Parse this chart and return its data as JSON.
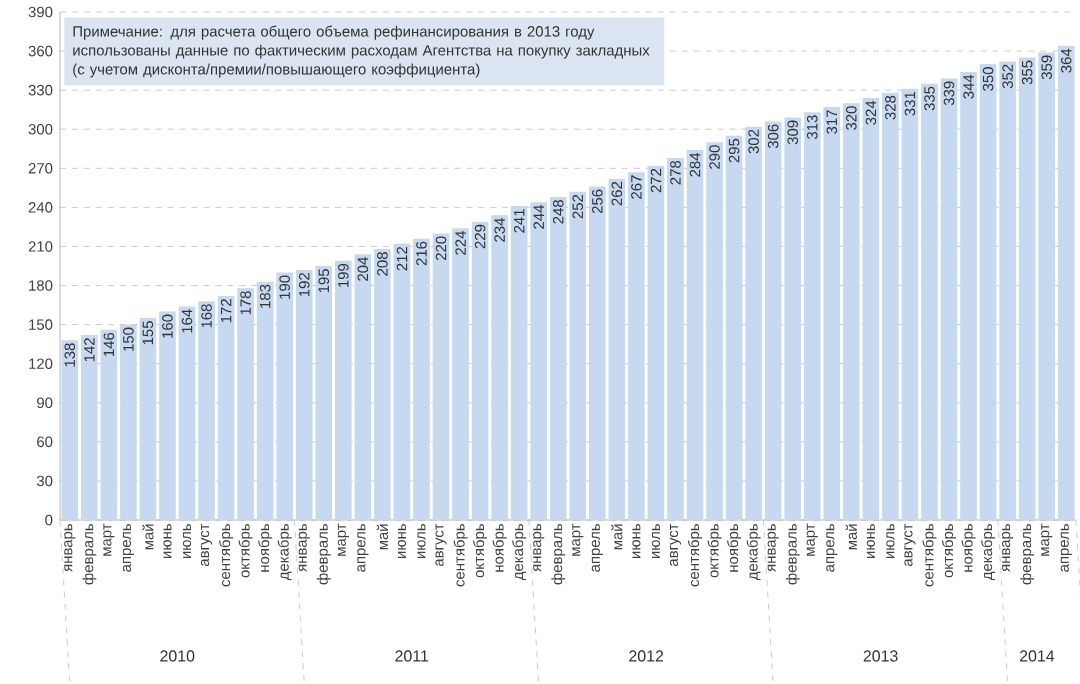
{
  "chart_data": {
    "type": "bar",
    "categories": [
      "январь",
      "февраль",
      "март",
      "апрель",
      "май",
      "июнь",
      "июль",
      "август",
      "сентябрь",
      "октябрь",
      "ноябрь",
      "декабрь",
      "январь",
      "февраль",
      "март",
      "апрель",
      "май",
      "июнь",
      "июль",
      "август",
      "сентябрь",
      "октябрь",
      "ноябрь",
      "декабрь",
      "январь",
      "февраль",
      "март",
      "апрель",
      "май",
      "июнь",
      "июль",
      "август",
      "сентябрь",
      "октябрь",
      "ноябрь",
      "декабрь",
      "январь",
      "февраль",
      "март",
      "апрель",
      "май",
      "июнь",
      "июль",
      "август",
      "сентябрь",
      "октябрь",
      "ноябрь",
      "декабрь",
      "январь",
      "февраль",
      "март",
      "апрель"
    ],
    "values": [
      138,
      142,
      146,
      150,
      155,
      160,
      164,
      168,
      172,
      178,
      183,
      190,
      192,
      195,
      199,
      204,
      208,
      212,
      216,
      220,
      224,
      229,
      234,
      241,
      244,
      248,
      252,
      256,
      262,
      267,
      272,
      278,
      284,
      290,
      295,
      302,
      306,
      309,
      313,
      317,
      320,
      324,
      328,
      331,
      335,
      339,
      344,
      350,
      352,
      355,
      359,
      364
    ],
    "color": "#c6d9f0",
    "ylim": [
      0,
      390
    ],
    "yticks": [
      0,
      30,
      60,
      90,
      120,
      150,
      180,
      210,
      240,
      270,
      300,
      330,
      360,
      390
    ],
    "grid": "y",
    "data_labels": true,
    "annotations": [
      "Примечание: для расчета общего объема рефинансирования в 2013 году использованы данные по фактическим расходам Агентства на покупку закладных (с учетом дисконта/премии/повышающего коэффициента)",
      "2010",
      "2011",
      "2012",
      "2013",
      "2014"
    ]
  }
}
